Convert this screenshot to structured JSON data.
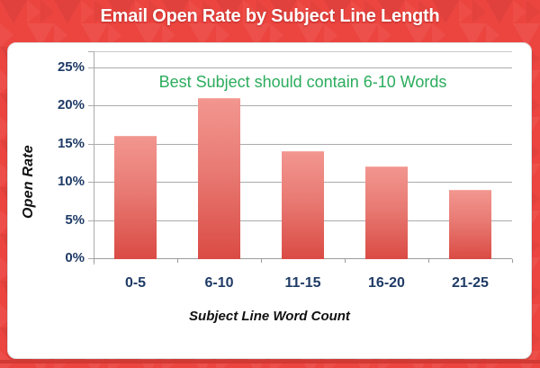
{
  "title": "Email Open Rate by Subject Line Length",
  "chart_data": {
    "type": "bar",
    "title": "Email Open Rate by Subject Line Length",
    "categories": [
      "0-5",
      "6-10",
      "11-15",
      "16-20",
      "21-25"
    ],
    "values": [
      16,
      21,
      14,
      12,
      9
    ],
    "unit": "%",
    "xlabel": "Subject Line Word Count",
    "ylabel": "Open Rate",
    "ylim": [
      0,
      25
    ],
    "yticks": [
      0,
      5,
      10,
      15,
      20,
      25
    ],
    "ytick_labels": [
      "0%",
      "5%",
      "10%",
      "15%",
      "20%",
      "25%"
    ],
    "grid": true,
    "legend": false,
    "annotation": "Best Subject should contain 6-10 Words"
  },
  "colors": {
    "background": "#EC4540",
    "footer_stripe": "#D23A34",
    "panel_bg": "#FFFFFF",
    "panel_border": "#DEDEDE",
    "grid_line": "#ABABAB",
    "axis_line": "#9B9B9B",
    "plot_top_border": "#C9C9C9",
    "bar_top": "#F2968F",
    "bar_mid": "#E87A73",
    "bar_bottom": "#DA4B44",
    "tick_label": "#1F3B66",
    "axis_title_text": "#111111",
    "annotation_text": "#2BAC5C",
    "title_text": "#FFFFFF"
  }
}
